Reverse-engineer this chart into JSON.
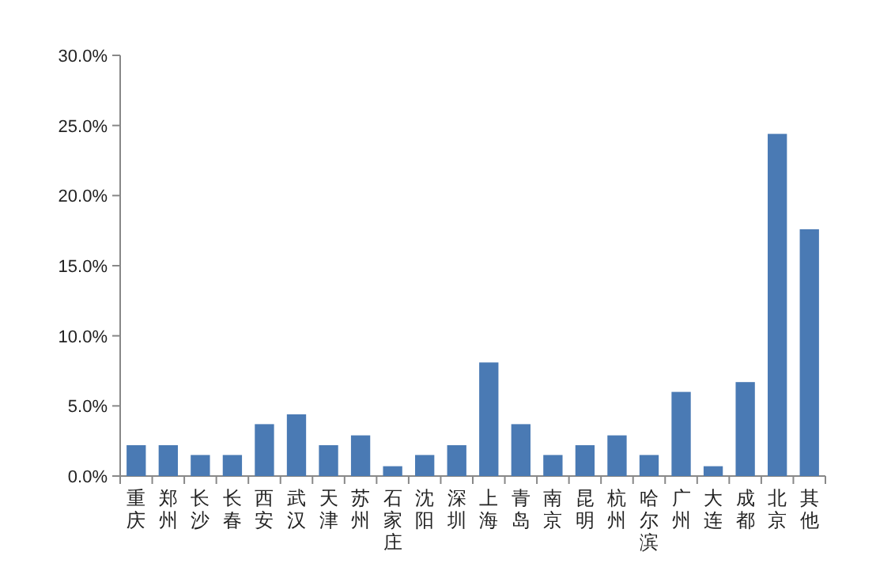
{
  "chart_data": {
    "type": "bar",
    "categories": [
      "重庆",
      "郑州",
      "长沙",
      "长春",
      "西安",
      "武汉",
      "天津",
      "苏州",
      "石家庄",
      "沈阳",
      "深圳",
      "上海",
      "青岛",
      "南京",
      "昆明",
      "杭州",
      "哈尔滨",
      "广州",
      "大连",
      "成都",
      "北京",
      "其他"
    ],
    "values": [
      2.2,
      2.2,
      1.5,
      1.5,
      3.7,
      4.4,
      2.2,
      2.9,
      0.7,
      1.5,
      2.2,
      8.1,
      3.7,
      1.5,
      2.2,
      2.9,
      1.5,
      6.0,
      0.7,
      6.7,
      24.4,
      17.6
    ],
    "color": "#4a7ab4",
    "ylim": [
      0,
      30
    ],
    "yticks": [
      {
        "value": 0,
        "label": "0.0%"
      },
      {
        "value": 5,
        "label": "5.0%"
      },
      {
        "value": 10,
        "label": "10.0%"
      },
      {
        "value": 15,
        "label": "15.0%"
      },
      {
        "value": 20,
        "label": "20.0%"
      },
      {
        "value": 25,
        "label": "25.0%"
      },
      {
        "value": 30,
        "label": "30.0%"
      }
    ],
    "grid": false
  }
}
